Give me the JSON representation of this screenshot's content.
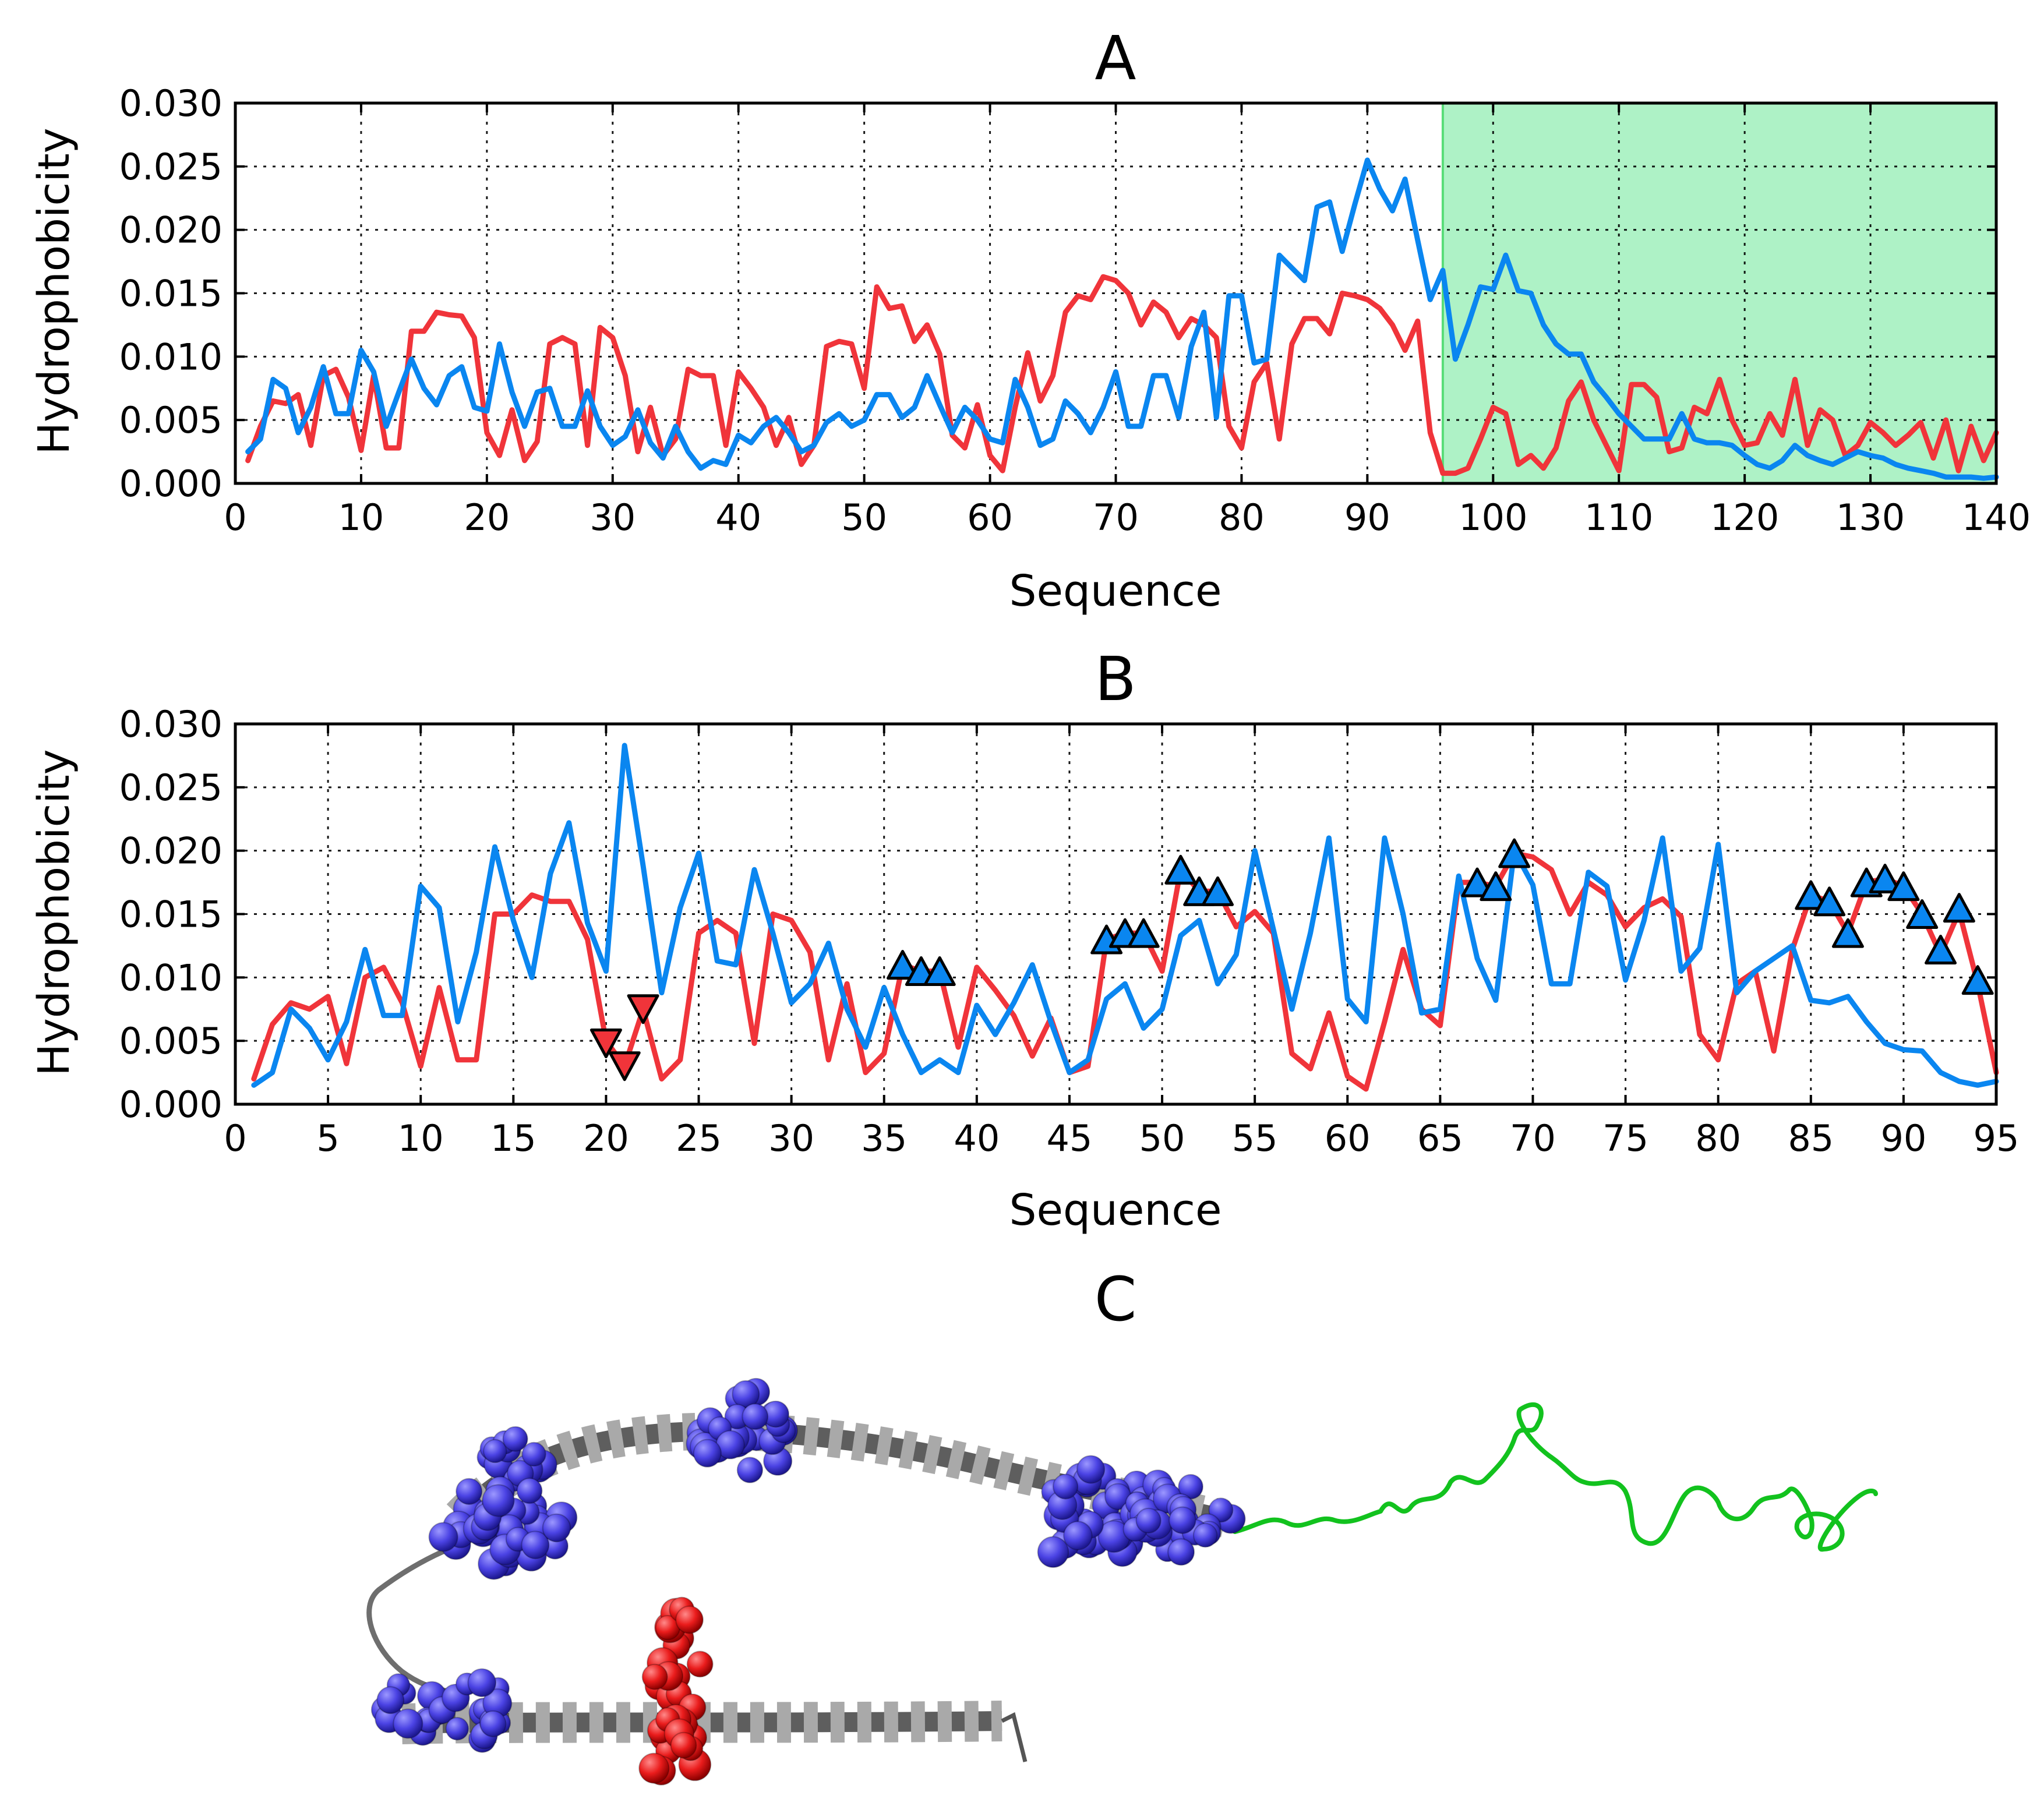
{
  "colors": {
    "red_series": "#f0343a",
    "blue_series": "#0a86f0",
    "shade": "#aef2c6",
    "shade_edge": "#58dd78",
    "helix": "#777777",
    "blue_atoms": "#4b43e4",
    "red_atoms": "#ea1c1c",
    "tail": "#12c21e"
  },
  "chart_data": [
    {
      "panel": "A",
      "type": "line",
      "title": "A",
      "xlabel": "Sequence",
      "ylabel": "Hydrophobicity",
      "xlim": [
        0,
        140
      ],
      "ylim": [
        0,
        0.03
      ],
      "x_ticks": [
        "0",
        "10",
        "20",
        "30",
        "40",
        "50",
        "60",
        "70",
        "80",
        "90",
        "100",
        "110",
        "120",
        "130",
        "140"
      ],
      "y_ticks": [
        "0.000",
        "0.005",
        "0.010",
        "0.015",
        "0.020",
        "0.025",
        "0.030"
      ],
      "x_tick_values": [
        0,
        10,
        20,
        30,
        40,
        50,
        60,
        70,
        80,
        90,
        100,
        110,
        120,
        130,
        140
      ],
      "y_tick_values": [
        0,
        0.005,
        0.01,
        0.015,
        0.02,
        0.025,
        0.03
      ],
      "grid": true,
      "shaded_region": {
        "x_start": 96,
        "x_end": 140
      },
      "x_start": 1,
      "series": [
        {
          "name": "red",
          "color": "#f0343a",
          "values": [
            0.0018,
            0.0045,
            0.0065,
            0.0063,
            0.007,
            0.003,
            0.0085,
            0.009,
            0.0068,
            0.0026,
            0.0085,
            0.0028,
            0.0028,
            0.012,
            0.012,
            0.0135,
            0.0133,
            0.0132,
            0.0115,
            0.004,
            0.0022,
            0.0058,
            0.0018,
            0.0033,
            0.011,
            0.0115,
            0.011,
            0.003,
            0.0123,
            0.0115,
            0.0085,
            0.0025,
            0.006,
            0.0022,
            0.0035,
            0.009,
            0.0085,
            0.0085,
            0.003,
            0.0088,
            0.0075,
            0.006,
            0.003,
            0.0052,
            0.0015,
            0.003,
            0.0108,
            0.0112,
            0.011,
            0.0075,
            0.0155,
            0.0138,
            0.014,
            0.0112,
            0.0125,
            0.0102,
            0.0038,
            0.0028,
            0.0062,
            0.0022,
            0.001,
            0.006,
            0.0103,
            0.0065,
            0.0085,
            0.0135,
            0.0148,
            0.0145,
            0.0163,
            0.016,
            0.015,
            0.0125,
            0.0143,
            0.0135,
            0.0115,
            0.013,
            0.0125,
            0.0115,
            0.0045,
            0.0028,
            0.008,
            0.0095,
            0.0035,
            0.011,
            0.013,
            0.013,
            0.0118,
            0.015,
            0.0148,
            0.0145,
            0.0138,
            0.0125,
            0.0105,
            0.0128,
            0.004,
            0.0008,
            0.0008,
            0.0012,
            0.0035,
            0.006,
            0.0055,
            0.0015,
            0.0022,
            0.0012,
            0.0028,
            0.0065,
            0.008,
            0.005,
            0.003,
            0.001,
            0.0078,
            0.0078,
            0.0068,
            0.0025,
            0.0028,
            0.006,
            0.0055,
            0.0082,
            0.005,
            0.003,
            0.0032,
            0.0055,
            0.0038,
            0.0082,
            0.003,
            0.0058,
            0.005,
            0.0022,
            0.003,
            0.0048,
            0.004,
            0.003,
            0.0038,
            0.0048,
            0.002,
            0.005,
            0.001,
            0.0045,
            0.0018,
            0.004
          ]
        },
        {
          "name": "blue",
          "color": "#0a86f0",
          "values": [
            0.0025,
            0.0035,
            0.0082,
            0.0075,
            0.004,
            0.006,
            0.0092,
            0.0055,
            0.0055,
            0.0105,
            0.0088,
            0.0045,
            0.0072,
            0.0098,
            0.0075,
            0.0062,
            0.0085,
            0.0092,
            0.006,
            0.0057,
            0.011,
            0.0072,
            0.0045,
            0.0072,
            0.0075,
            0.0045,
            0.0045,
            0.0073,
            0.0045,
            0.003,
            0.0037,
            0.0058,
            0.0032,
            0.002,
            0.0045,
            0.0025,
            0.0012,
            0.0018,
            0.0015,
            0.0038,
            0.0032,
            0.0045,
            0.0052,
            0.004,
            0.0025,
            0.003,
            0.0048,
            0.0055,
            0.0045,
            0.005,
            0.007,
            0.007,
            0.0052,
            0.006,
            0.0085,
            0.0062,
            0.004,
            0.006,
            0.005,
            0.0035,
            0.0032,
            0.0082,
            0.006,
            0.003,
            0.0035,
            0.0065,
            0.0055,
            0.004,
            0.006,
            0.0088,
            0.0045,
            0.0045,
            0.0085,
            0.0085,
            0.0052,
            0.0108,
            0.0135,
            0.0052,
            0.0148,
            0.0148,
            0.0095,
            0.0098,
            0.018,
            0.017,
            0.016,
            0.0218,
            0.0222,
            0.0183,
            0.022,
            0.0255,
            0.0232,
            0.0215,
            0.024,
            0.0192,
            0.0145,
            0.0168,
            0.0098,
            0.0125,
            0.0155,
            0.0153,
            0.018,
            0.0152,
            0.015,
            0.0125,
            0.011,
            0.0102,
            0.0102,
            0.008,
            0.0068,
            0.0055,
            0.0045,
            0.0035,
            0.0035,
            0.0035,
            0.0055,
            0.0035,
            0.0032,
            0.0032,
            0.003,
            0.0022,
            0.0015,
            0.0012,
            0.0018,
            0.003,
            0.0022,
            0.0018,
            0.0015,
            0.002,
            0.0025,
            0.0022,
            0.002,
            0.0015,
            0.0012,
            0.001,
            0.0008,
            0.0005,
            0.0005,
            0.0005,
            0.0004,
            0.0005
          ]
        }
      ]
    },
    {
      "panel": "B",
      "type": "line",
      "title": "B",
      "xlabel": "Sequence",
      "ylabel": "Hydrophobicity",
      "xlim": [
        0,
        95
      ],
      "ylim": [
        0,
        0.03
      ],
      "x_ticks": [
        "0",
        "5",
        "10",
        "15",
        "20",
        "25",
        "30",
        "35",
        "40",
        "45",
        "50",
        "55",
        "60",
        "65",
        "70",
        "75",
        "80",
        "85",
        "90",
        "95"
      ],
      "y_ticks": [
        "0.000",
        "0.005",
        "0.010",
        "0.015",
        "0.020",
        "0.025",
        "0.030"
      ],
      "x_tick_values": [
        0,
        5,
        10,
        15,
        20,
        25,
        30,
        35,
        40,
        45,
        50,
        55,
        60,
        65,
        70,
        75,
        80,
        85,
        90,
        95
      ],
      "y_tick_values": [
        0,
        0.005,
        0.01,
        0.015,
        0.02,
        0.025,
        0.03
      ],
      "grid": true,
      "x_start": 1,
      "series": [
        {
          "name": "red",
          "color": "#f0343a",
          "values": [
            0.002,
            0.0063,
            0.008,
            0.0075,
            0.0085,
            0.0032,
            0.01,
            0.0108,
            0.008,
            0.003,
            0.0092,
            0.0035,
            0.0035,
            0.015,
            0.015,
            0.0165,
            0.016,
            0.016,
            0.013,
            0.005,
            0.003,
            0.0075,
            0.002,
            0.0035,
            0.0135,
            0.0145,
            0.0135,
            0.0048,
            0.015,
            0.0145,
            0.012,
            0.0035,
            0.0095,
            0.0025,
            0.004,
            0.011,
            0.0105,
            0.0105,
            0.0045,
            0.0108,
            0.009,
            0.007,
            0.0038,
            0.0068,
            0.0025,
            0.003,
            0.013,
            0.0135,
            0.0135,
            0.0105,
            0.0185,
            0.0168,
            0.0168,
            0.014,
            0.0152,
            0.0135,
            0.004,
            0.0028,
            0.0072,
            0.0022,
            0.0012,
            0.0065,
            0.0122,
            0.0075,
            0.0062,
            0.0175,
            0.0175,
            0.0172,
            0.0198,
            0.0195,
            0.0185,
            0.015,
            0.0175,
            0.0165,
            0.014,
            0.0155,
            0.0162,
            0.0148,
            0.0055,
            0.0035,
            0.0095,
            0.0105,
            0.0042,
            0.0122,
            0.0165,
            0.016,
            0.0135,
            0.0175,
            0.0178,
            0.0172,
            0.015,
            0.0118,
            0.0152,
            0.0095,
            0.0025
          ]
        },
        {
          "name": "blue",
          "color": "#0a86f0",
          "values": [
            0.0015,
            0.0025,
            0.0075,
            0.006,
            0.0035,
            0.0065,
            0.0122,
            0.007,
            0.007,
            0.0172,
            0.0155,
            0.0065,
            0.012,
            0.0203,
            0.0145,
            0.01,
            0.0182,
            0.0222,
            0.0143,
            0.0105,
            0.0283,
            0.0188,
            0.0088,
            0.0155,
            0.0198,
            0.0113,
            0.011,
            0.0185,
            0.0135,
            0.008,
            0.0095,
            0.0127,
            0.0075,
            0.0045,
            0.0092,
            0.0055,
            0.0025,
            0.0035,
            0.0025,
            0.0078,
            0.0055,
            0.008,
            0.011,
            0.0065,
            0.0025,
            0.0035,
            0.0083,
            0.0095,
            0.006,
            0.0075,
            0.0133,
            0.0145,
            0.0095,
            0.0118,
            0.02,
            0.0138,
            0.0075,
            0.0135,
            0.021,
            0.0083,
            0.0065,
            0.021,
            0.015,
            0.0072,
            0.0075,
            0.018,
            0.0115,
            0.0082,
            0.02,
            0.0173,
            0.0095,
            0.0095,
            0.0183,
            0.0172,
            0.0098,
            0.0145,
            0.021,
            0.0105,
            0.0123,
            0.0205,
            0.0088,
            0.0105,
            0.0115,
            0.0125,
            0.0082,
            0.008,
            0.0085,
            0.0065,
            0.0048,
            0.0043,
            0.0042,
            0.0025,
            0.0018,
            0.0015,
            0.0018
          ]
        }
      ],
      "markers": {
        "down_red": [
          {
            "x": 20,
            "y": 0.0048
          },
          {
            "x": 21,
            "y": 0.003
          },
          {
            "x": 22,
            "y": 0.0075
          }
        ],
        "up_blue": [
          {
            "x": 36,
            "y": 0.011
          },
          {
            "x": 37,
            "y": 0.0105
          },
          {
            "x": 38,
            "y": 0.0105
          },
          {
            "x": 47,
            "y": 0.013
          },
          {
            "x": 48,
            "y": 0.0135
          },
          {
            "x": 49,
            "y": 0.0135
          },
          {
            "x": 51,
            "y": 0.0185
          },
          {
            "x": 52,
            "y": 0.0168
          },
          {
            "x": 53,
            "y": 0.0168
          },
          {
            "x": 67,
            "y": 0.0175
          },
          {
            "x": 68,
            "y": 0.0172
          },
          {
            "x": 69,
            "y": 0.0198
          },
          {
            "x": 85,
            "y": 0.0165
          },
          {
            "x": 86,
            "y": 0.016
          },
          {
            "x": 87,
            "y": 0.0135
          },
          {
            "x": 88,
            "y": 0.0175
          },
          {
            "x": 89,
            "y": 0.0178
          },
          {
            "x": 90,
            "y": 0.0172
          },
          {
            "x": 91,
            "y": 0.015
          },
          {
            "x": 92,
            "y": 0.0122
          },
          {
            "x": 93,
            "y": 0.0155
          },
          {
            "x": 94,
            "y": 0.0098
          }
        ]
      }
    }
  ],
  "panel_c": {
    "title": "C"
  }
}
